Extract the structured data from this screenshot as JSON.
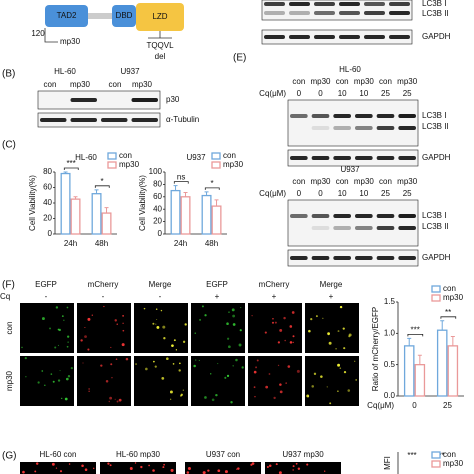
{
  "diagram": {
    "domains": [
      "TAD2",
      "DBD",
      "LZD"
    ],
    "start": "120",
    "construct": "mp30",
    "motif": "TQQVL",
    "mutation": "del"
  },
  "blot_top": {
    "labels": [
      "LC3B I",
      "LC3B II",
      "GAPDH"
    ]
  },
  "panel_b": {
    "label": "(B)",
    "cells": [
      "HL-60",
      "U937"
    ],
    "lanes": [
      "con",
      "mp30",
      "con",
      "mp30"
    ],
    "rows": [
      "p30",
      "α-Tubulin"
    ]
  },
  "panel_c": {
    "label": "(C)",
    "charts": [
      {
        "title": "HL-60",
        "ylabel": "Cell Viability(%)",
        "categories": [
          "24h",
          "48h"
        ],
        "ylim": [
          0,
          80
        ],
        "yticks": [
          0,
          20,
          40,
          60,
          80
        ],
        "significance": [
          "***",
          "*"
        ],
        "series": [
          {
            "name": "con",
            "color": "#6fa8dc",
            "values": [
              78,
              52
            ],
            "errors": [
              2,
              5
            ]
          },
          {
            "name": "mp30",
            "color": "#ea9999",
            "values": [
              45,
              27
            ],
            "errors": [
              3,
              7
            ]
          }
        ]
      },
      {
        "title": "U937",
        "ylabel": "Cell Viability(%)",
        "categories": [
          "24h",
          "48h"
        ],
        "ylim": [
          0,
          100
        ],
        "yticks": [
          0,
          20,
          40,
          60,
          80,
          100
        ],
        "significance": [
          "ns",
          "*"
        ],
        "series": [
          {
            "name": "con",
            "color": "#6fa8dc",
            "values": [
              70,
              62
            ],
            "errors": [
              8,
              6
            ]
          },
          {
            "name": "mp30",
            "color": "#ea9999",
            "values": [
              60,
              45
            ],
            "errors": [
              7,
              10
            ]
          }
        ]
      }
    ]
  },
  "panel_e": {
    "label": "(E)",
    "blots": [
      {
        "cell": "HL-60",
        "cq_label": "Cq(μM)",
        "lanes": [
          "con",
          "mp30",
          "con",
          "mp30",
          "con",
          "mp30"
        ],
        "cq": [
          "0",
          "0",
          "10",
          "10",
          "25",
          "25"
        ],
        "rows": [
          "LC3B I",
          "LC3B II",
          "GAPDH"
        ]
      },
      {
        "cell": "U937",
        "cq_label": "Cq(μM)",
        "lanes": [
          "con",
          "mp30",
          "con",
          "mp30",
          "con",
          "mp30"
        ],
        "cq": [
          "0",
          "0",
          "10",
          "10",
          "25",
          "25"
        ],
        "rows": [
          "LC3B I",
          "LC3B II",
          "GAPDH"
        ]
      }
    ]
  },
  "panel_f": {
    "label": "(F)",
    "columns": [
      "EGFP",
      "mCherry",
      "Merge",
      "EGFP",
      "mCherry",
      "Merge"
    ],
    "cq_label": "Cq",
    "cq": [
      "-",
      "-",
      "-",
      "+",
      "+",
      "+"
    ],
    "rows": [
      "con",
      "mp30"
    ],
    "chart": {
      "ylabel": "Ratio of mCherry/EGFP",
      "xlabel": "Cq(μM)",
      "categories": [
        "0",
        "25"
      ],
      "ylim": [
        0,
        1.5
      ],
      "yticks": [
        {
          "value": 0,
          "label": "0.0"
        },
        0.5,
        {
          "value": 1,
          "label": "1.0"
        },
        1.5
      ],
      "significance": [
        "***",
        "**"
      ],
      "series": [
        {
          "name": "con",
          "color": "#6fa8dc",
          "values": [
            0.8,
            1.05
          ],
          "errors": [
            0.12,
            0.15
          ]
        },
        {
          "name": "mp30",
          "color": "#ea9999",
          "values": [
            0.5,
            0.8
          ],
          "errors": [
            0.15,
            0.15
          ]
        }
      ]
    }
  },
  "panel_g": {
    "label": "(G)",
    "columns": [
      "HL-60 con",
      "HL-60 mp30",
      "U937 con",
      "U937 mp30"
    ],
    "chart": {
      "ylabel": "MFI",
      "significance": [
        "***",
        "***"
      ],
      "series": [
        {
          "name": "con",
          "color": "#6fa8dc"
        },
        {
          "name": "mp30",
          "color": "#ea9999"
        }
      ]
    }
  }
}
